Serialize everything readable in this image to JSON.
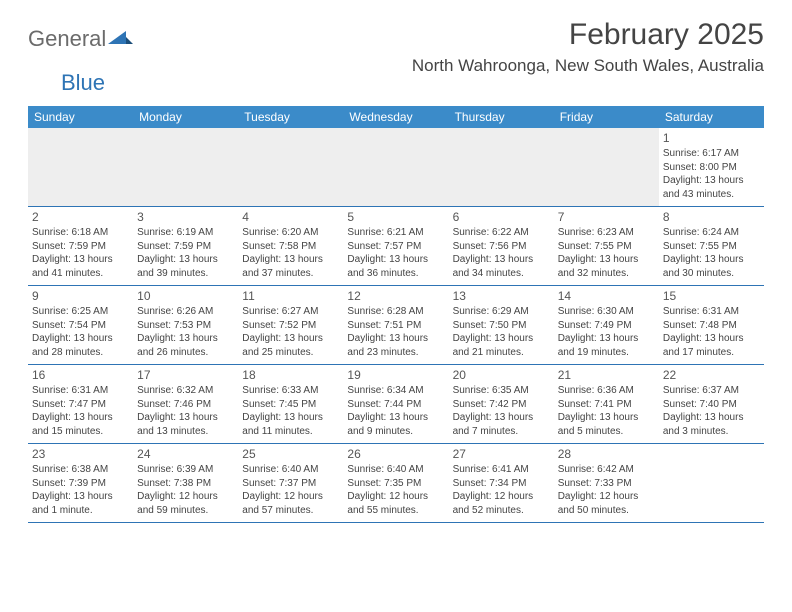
{
  "logo": {
    "general": "General",
    "blue": "Blue"
  },
  "title": "February 2025",
  "location": "North Wahroonga, New South Wales, Australia",
  "colors": {
    "header_bg": "#3b8bc9",
    "row_border": "#2e74b5",
    "text": "#444444",
    "blank_bg": "#eeeeee"
  },
  "weekdays": [
    "Sunday",
    "Monday",
    "Tuesday",
    "Wednesday",
    "Thursday",
    "Friday",
    "Saturday"
  ],
  "weeks": [
    [
      {
        "blank": true
      },
      {
        "blank": true
      },
      {
        "blank": true
      },
      {
        "blank": true
      },
      {
        "blank": true
      },
      {
        "blank": true
      },
      {
        "day": "1",
        "sunrise": "Sunrise: 6:17 AM",
        "sunset": "Sunset: 8:00 PM",
        "daylight1": "Daylight: 13 hours",
        "daylight2": "and 43 minutes."
      }
    ],
    [
      {
        "day": "2",
        "sunrise": "Sunrise: 6:18 AM",
        "sunset": "Sunset: 7:59 PM",
        "daylight1": "Daylight: 13 hours",
        "daylight2": "and 41 minutes."
      },
      {
        "day": "3",
        "sunrise": "Sunrise: 6:19 AM",
        "sunset": "Sunset: 7:59 PM",
        "daylight1": "Daylight: 13 hours",
        "daylight2": "and 39 minutes."
      },
      {
        "day": "4",
        "sunrise": "Sunrise: 6:20 AM",
        "sunset": "Sunset: 7:58 PM",
        "daylight1": "Daylight: 13 hours",
        "daylight2": "and 37 minutes."
      },
      {
        "day": "5",
        "sunrise": "Sunrise: 6:21 AM",
        "sunset": "Sunset: 7:57 PM",
        "daylight1": "Daylight: 13 hours",
        "daylight2": "and 36 minutes."
      },
      {
        "day": "6",
        "sunrise": "Sunrise: 6:22 AM",
        "sunset": "Sunset: 7:56 PM",
        "daylight1": "Daylight: 13 hours",
        "daylight2": "and 34 minutes."
      },
      {
        "day": "7",
        "sunrise": "Sunrise: 6:23 AM",
        "sunset": "Sunset: 7:55 PM",
        "daylight1": "Daylight: 13 hours",
        "daylight2": "and 32 minutes."
      },
      {
        "day": "8",
        "sunrise": "Sunrise: 6:24 AM",
        "sunset": "Sunset: 7:55 PM",
        "daylight1": "Daylight: 13 hours",
        "daylight2": "and 30 minutes."
      }
    ],
    [
      {
        "day": "9",
        "sunrise": "Sunrise: 6:25 AM",
        "sunset": "Sunset: 7:54 PM",
        "daylight1": "Daylight: 13 hours",
        "daylight2": "and 28 minutes."
      },
      {
        "day": "10",
        "sunrise": "Sunrise: 6:26 AM",
        "sunset": "Sunset: 7:53 PM",
        "daylight1": "Daylight: 13 hours",
        "daylight2": "and 26 minutes."
      },
      {
        "day": "11",
        "sunrise": "Sunrise: 6:27 AM",
        "sunset": "Sunset: 7:52 PM",
        "daylight1": "Daylight: 13 hours",
        "daylight2": "and 25 minutes."
      },
      {
        "day": "12",
        "sunrise": "Sunrise: 6:28 AM",
        "sunset": "Sunset: 7:51 PM",
        "daylight1": "Daylight: 13 hours",
        "daylight2": "and 23 minutes."
      },
      {
        "day": "13",
        "sunrise": "Sunrise: 6:29 AM",
        "sunset": "Sunset: 7:50 PM",
        "daylight1": "Daylight: 13 hours",
        "daylight2": "and 21 minutes."
      },
      {
        "day": "14",
        "sunrise": "Sunrise: 6:30 AM",
        "sunset": "Sunset: 7:49 PM",
        "daylight1": "Daylight: 13 hours",
        "daylight2": "and 19 minutes."
      },
      {
        "day": "15",
        "sunrise": "Sunrise: 6:31 AM",
        "sunset": "Sunset: 7:48 PM",
        "daylight1": "Daylight: 13 hours",
        "daylight2": "and 17 minutes."
      }
    ],
    [
      {
        "day": "16",
        "sunrise": "Sunrise: 6:31 AM",
        "sunset": "Sunset: 7:47 PM",
        "daylight1": "Daylight: 13 hours",
        "daylight2": "and 15 minutes."
      },
      {
        "day": "17",
        "sunrise": "Sunrise: 6:32 AM",
        "sunset": "Sunset: 7:46 PM",
        "daylight1": "Daylight: 13 hours",
        "daylight2": "and 13 minutes."
      },
      {
        "day": "18",
        "sunrise": "Sunrise: 6:33 AM",
        "sunset": "Sunset: 7:45 PM",
        "daylight1": "Daylight: 13 hours",
        "daylight2": "and 11 minutes."
      },
      {
        "day": "19",
        "sunrise": "Sunrise: 6:34 AM",
        "sunset": "Sunset: 7:44 PM",
        "daylight1": "Daylight: 13 hours",
        "daylight2": "and 9 minutes."
      },
      {
        "day": "20",
        "sunrise": "Sunrise: 6:35 AM",
        "sunset": "Sunset: 7:42 PM",
        "daylight1": "Daylight: 13 hours",
        "daylight2": "and 7 minutes."
      },
      {
        "day": "21",
        "sunrise": "Sunrise: 6:36 AM",
        "sunset": "Sunset: 7:41 PM",
        "daylight1": "Daylight: 13 hours",
        "daylight2": "and 5 minutes."
      },
      {
        "day": "22",
        "sunrise": "Sunrise: 6:37 AM",
        "sunset": "Sunset: 7:40 PM",
        "daylight1": "Daylight: 13 hours",
        "daylight2": "and 3 minutes."
      }
    ],
    [
      {
        "day": "23",
        "sunrise": "Sunrise: 6:38 AM",
        "sunset": "Sunset: 7:39 PM",
        "daylight1": "Daylight: 13 hours",
        "daylight2": "and 1 minute."
      },
      {
        "day": "24",
        "sunrise": "Sunrise: 6:39 AM",
        "sunset": "Sunset: 7:38 PM",
        "daylight1": "Daylight: 12 hours",
        "daylight2": "and 59 minutes."
      },
      {
        "day": "25",
        "sunrise": "Sunrise: 6:40 AM",
        "sunset": "Sunset: 7:37 PM",
        "daylight1": "Daylight: 12 hours",
        "daylight2": "and 57 minutes."
      },
      {
        "day": "26",
        "sunrise": "Sunrise: 6:40 AM",
        "sunset": "Sunset: 7:35 PM",
        "daylight1": "Daylight: 12 hours",
        "daylight2": "and 55 minutes."
      },
      {
        "day": "27",
        "sunrise": "Sunrise: 6:41 AM",
        "sunset": "Sunset: 7:34 PM",
        "daylight1": "Daylight: 12 hours",
        "daylight2": "and 52 minutes."
      },
      {
        "day": "28",
        "sunrise": "Sunrise: 6:42 AM",
        "sunset": "Sunset: 7:33 PM",
        "daylight1": "Daylight: 12 hours",
        "daylight2": "and 50 minutes."
      },
      {
        "blank": true
      }
    ]
  ]
}
